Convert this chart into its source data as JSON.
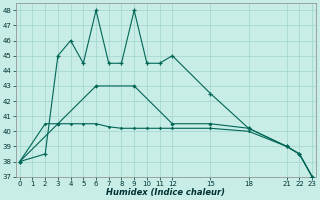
{
  "xlabel": "Humidex (Indice chaleur)",
  "bg_color": "#c8ece6",
  "grid_color": "#a0d4cc",
  "line_color": "#006655",
  "line1_x": [
    0,
    2,
    3,
    4,
    5,
    6,
    7,
    8,
    9,
    10,
    11,
    12,
    15,
    18,
    21,
    22,
    23
  ],
  "line1_y": [
    38,
    38.5,
    45,
    46,
    44.5,
    48,
    44.5,
    44.5,
    48,
    44.5,
    44.5,
    45,
    42.5,
    40.2,
    39,
    38.5,
    37
  ],
  "line2_x": [
    0,
    3,
    6,
    9,
    12,
    15,
    18,
    21,
    22,
    23
  ],
  "line2_y": [
    38,
    40.5,
    43,
    43,
    40.5,
    40.5,
    40.2,
    39,
    38.5,
    37
  ],
  "line3_x": [
    0,
    2,
    3,
    4,
    5,
    6,
    7,
    8,
    9,
    10,
    11,
    12,
    15,
    18,
    21,
    22,
    23
  ],
  "line3_y": [
    38,
    40.5,
    40.5,
    40.5,
    40.5,
    40.5,
    40.3,
    40.2,
    40.2,
    40.2,
    40.2,
    40.2,
    40.2,
    40.0,
    39.0,
    38.5,
    37
  ],
  "ylim": [
    37,
    48.5
  ],
  "yticks": [
    37,
    38,
    39,
    40,
    41,
    42,
    43,
    44,
    45,
    46,
    47,
    48
  ],
  "xticks": [
    0,
    1,
    2,
    3,
    4,
    5,
    6,
    7,
    8,
    9,
    10,
    11,
    12,
    15,
    18,
    21,
    22,
    23
  ],
  "xlim": [
    -0.3,
    23.3
  ]
}
